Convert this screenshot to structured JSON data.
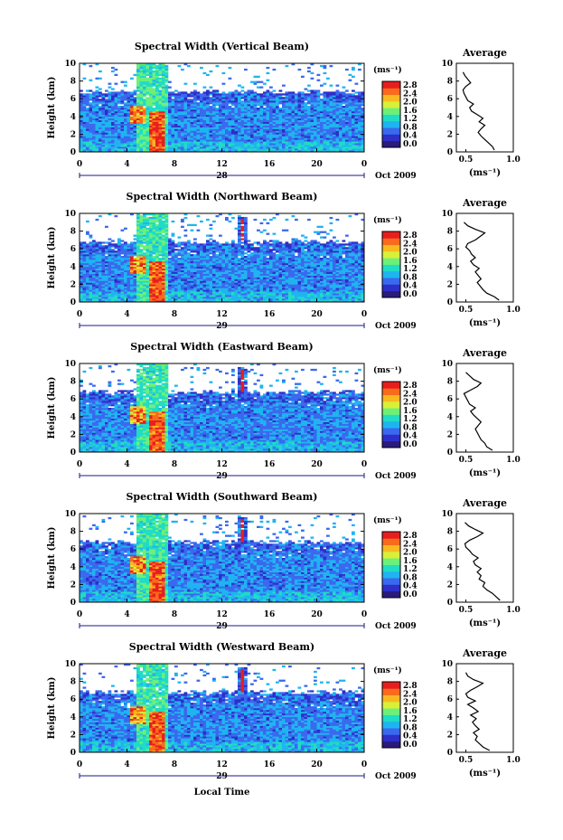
{
  "figure": {
    "xlabel": "Local Time",
    "date_label": "Oct 2009"
  },
  "colorbar": {
    "unit_label": "(ms⁻¹)",
    "tick_labels": [
      "2.8",
      "2.4",
      "2.0",
      "1.6",
      "1.2",
      "0.8",
      "0.4",
      "0.0"
    ],
    "colors": [
      "#2a1a7c",
      "#2c2fc8",
      "#3a68ee",
      "#1fb4f0",
      "#20dcc4",
      "#6cf07a",
      "#d8f038",
      "#f8b820",
      "#f86a1c",
      "#e81e1e"
    ]
  },
  "chart_data": [
    {
      "type": "heatmap",
      "title": "Spectral Width (Vertical Beam)",
      "ylabel": "Height (km)",
      "ylim": [
        0,
        10
      ],
      "y_ticks": [
        "0",
        "2",
        "4",
        "6",
        "8",
        "10"
      ],
      "xlim": [
        0,
        24
      ],
      "x_ticks": [
        "0",
        "4",
        "8",
        "12",
        "16",
        "20",
        "0"
      ],
      "date_day": "28",
      "profile": {
        "title": "Average",
        "xlabel": "(ms⁻¹)",
        "x_ticks": [
          "0.5",
          "1.0"
        ],
        "y_ticks": [
          "0",
          "2",
          "4",
          "6",
          "8",
          "10"
        ],
        "xlim": [
          0.4,
          1.0
        ],
        "heights": [
          0.2,
          0.6,
          1.0,
          1.4,
          1.8,
          2.2,
          2.6,
          3.0,
          3.4,
          3.8,
          4.2,
          4.6,
          5.0,
          5.4,
          5.8,
          6.2,
          6.6,
          7.0,
          7.4,
          7.8,
          8.2,
          8.6,
          9.0
        ],
        "values": [
          0.8,
          0.78,
          0.74,
          0.7,
          0.66,
          0.63,
          0.66,
          0.7,
          0.64,
          0.68,
          0.62,
          0.56,
          0.54,
          0.58,
          0.52,
          0.5,
          0.48,
          0.47,
          0.5,
          0.55,
          0.52,
          0.49,
          0.47
        ]
      }
    },
    {
      "type": "heatmap",
      "title": "Spectral Width (Northward Beam)",
      "ylabel": "Height (km)",
      "ylim": [
        0,
        10
      ],
      "y_ticks": [
        "0",
        "2",
        "4",
        "6",
        "8",
        "10"
      ],
      "xlim": [
        0,
        24
      ],
      "x_ticks": [
        "0",
        "4",
        "8",
        "12",
        "16",
        "20",
        "0"
      ],
      "date_day": "29",
      "profile": {
        "title": "Average",
        "xlabel": "(ms⁻¹)",
        "x_ticks": [
          "0.5",
          "1.0"
        ],
        "y_ticks": [
          "0",
          "2",
          "4",
          "6",
          "8",
          "10"
        ],
        "xlim": [
          0.4,
          1.0
        ],
        "heights": [
          0.2,
          0.6,
          1.0,
          1.4,
          1.8,
          2.2,
          2.6,
          3.0,
          3.4,
          3.8,
          4.2,
          4.6,
          5.0,
          5.4,
          5.8,
          6.2,
          6.6,
          7.0,
          7.4,
          7.8,
          8.2,
          8.6,
          9.0
        ],
        "values": [
          0.85,
          0.8,
          0.72,
          0.68,
          0.65,
          0.62,
          0.66,
          0.63,
          0.6,
          0.64,
          0.58,
          0.55,
          0.6,
          0.56,
          0.54,
          0.5,
          0.52,
          0.6,
          0.65,
          0.7,
          0.6,
          0.52,
          0.48
        ]
      }
    },
    {
      "type": "heatmap",
      "title": "Spectral Width (Eastward Beam)",
      "ylabel": "Height (km)",
      "ylim": [
        0,
        10
      ],
      "y_ticks": [
        "0",
        "2",
        "4",
        "6",
        "8",
        "10"
      ],
      "xlim": [
        0,
        24
      ],
      "x_ticks": [
        "0",
        "4",
        "8",
        "12",
        "16",
        "20",
        "0"
      ],
      "date_day": "29",
      "profile": {
        "title": "Average",
        "xlabel": "(ms⁻¹)",
        "x_ticks": [
          "0.5",
          "1.0"
        ],
        "y_ticks": [
          "0",
          "2",
          "4",
          "6",
          "8",
          "10"
        ],
        "xlim": [
          0.4,
          1.0
        ],
        "heights": [
          0.2,
          0.6,
          1.0,
          1.4,
          1.8,
          2.2,
          2.6,
          3.0,
          3.4,
          3.8,
          4.2,
          4.6,
          5.0,
          5.4,
          5.8,
          6.2,
          6.6,
          7.0,
          7.4,
          7.8,
          8.2,
          8.6,
          9.0
        ],
        "values": [
          0.78,
          0.72,
          0.7,
          0.66,
          0.64,
          0.62,
          0.6,
          0.63,
          0.66,
          0.62,
          0.58,
          0.55,
          0.6,
          0.54,
          0.52,
          0.5,
          0.48,
          0.55,
          0.62,
          0.66,
          0.58,
          0.54,
          0.5
        ]
      }
    },
    {
      "type": "heatmap",
      "title": "Spectral Width (Southward Beam)",
      "ylabel": "Height (km)",
      "ylim": [
        0,
        10
      ],
      "y_ticks": [
        "0",
        "2",
        "4",
        "6",
        "8",
        "10"
      ],
      "xlim": [
        0,
        24
      ],
      "x_ticks": [
        "0",
        "4",
        "8",
        "12",
        "16",
        "20",
        "0"
      ],
      "date_day": "29",
      "profile": {
        "title": "Average",
        "xlabel": "(ms⁻¹)",
        "x_ticks": [
          "0.5",
          "1.0"
        ],
        "y_ticks": [
          "0",
          "2",
          "4",
          "6",
          "8",
          "10"
        ],
        "xlim": [
          0.4,
          1.0
        ],
        "heights": [
          0.2,
          0.6,
          1.0,
          1.4,
          1.8,
          2.2,
          2.6,
          3.0,
          3.4,
          3.8,
          4.2,
          4.6,
          5.0,
          5.4,
          5.8,
          6.2,
          6.6,
          7.0,
          7.4,
          7.8,
          8.2,
          8.6,
          9.0
        ],
        "values": [
          0.86,
          0.82,
          0.78,
          0.72,
          0.68,
          0.7,
          0.64,
          0.66,
          0.62,
          0.66,
          0.6,
          0.58,
          0.63,
          0.57,
          0.54,
          0.5,
          0.49,
          0.54,
          0.62,
          0.68,
          0.6,
          0.53,
          0.49
        ]
      }
    },
    {
      "type": "heatmap",
      "title": "Spectral Width (Westward Beam)",
      "ylabel": "Height (km)",
      "ylim": [
        0,
        10
      ],
      "y_ticks": [
        "0",
        "2",
        "4",
        "6",
        "8",
        "10"
      ],
      "xlim": [
        0,
        24
      ],
      "x_ticks": [
        "0",
        "4",
        "8",
        "12",
        "16",
        "20",
        "0"
      ],
      "date_day": "29",
      "profile": {
        "title": "Average",
        "xlabel": "(ms⁻¹)",
        "x_ticks": [
          "0.5",
          "1.0"
        ],
        "y_ticks": [
          "0",
          "2",
          "4",
          "6",
          "8",
          "10"
        ],
        "xlim": [
          0.4,
          1.0
        ],
        "heights": [
          0.2,
          0.6,
          1.0,
          1.4,
          1.8,
          2.2,
          2.6,
          3.0,
          3.4,
          3.8,
          4.2,
          4.6,
          5.0,
          5.4,
          5.8,
          6.2,
          6.6,
          7.0,
          7.4,
          7.8,
          8.2,
          8.6,
          9.0
        ],
        "values": [
          0.75,
          0.68,
          0.64,
          0.6,
          0.62,
          0.58,
          0.64,
          0.6,
          0.57,
          0.61,
          0.55,
          0.63,
          0.58,
          0.52,
          0.6,
          0.52,
          0.5,
          0.55,
          0.62,
          0.68,
          0.58,
          0.52,
          0.5
        ]
      }
    }
  ]
}
